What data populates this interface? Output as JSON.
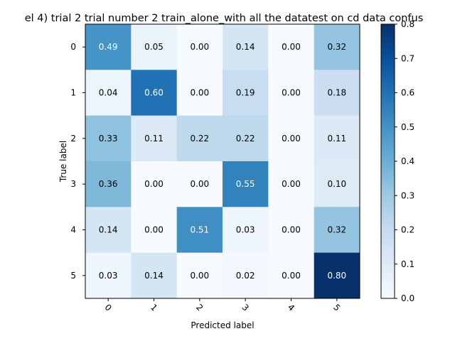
{
  "chart_data": {
    "type": "heatmap",
    "title": "el 4) trial 2 trial number 2  train_alone_with all the datatest on cd data confus",
    "xlabel": "Predicted label",
    "ylabel": "True label",
    "x_categories": [
      "0",
      "1",
      "2",
      "3",
      "4",
      "5"
    ],
    "y_categories": [
      "0",
      "1",
      "2",
      "3",
      "4",
      "5"
    ],
    "values": [
      [
        0.49,
        0.05,
        0.0,
        0.14,
        0.0,
        0.32
      ],
      [
        0.04,
        0.6,
        0.0,
        0.19,
        0.0,
        0.18
      ],
      [
        0.33,
        0.11,
        0.22,
        0.22,
        0.0,
        0.11
      ],
      [
        0.36,
        0.0,
        0.0,
        0.55,
        0.0,
        0.1
      ],
      [
        0.14,
        0.0,
        0.51,
        0.03,
        0.0,
        0.32
      ],
      [
        0.03,
        0.14,
        0.0,
        0.02,
        0.0,
        0.8
      ]
    ],
    "value_format": "2 decimals",
    "colormap": "Blues",
    "vmin": 0.0,
    "vmax": 0.8,
    "colorbar_ticks": [
      "0.0",
      "0.1",
      "0.2",
      "0.3",
      "0.4",
      "0.5",
      "0.6",
      "0.7",
      "0.8"
    ],
    "x_tick_rotation": "45 degrees",
    "grid": false
  }
}
